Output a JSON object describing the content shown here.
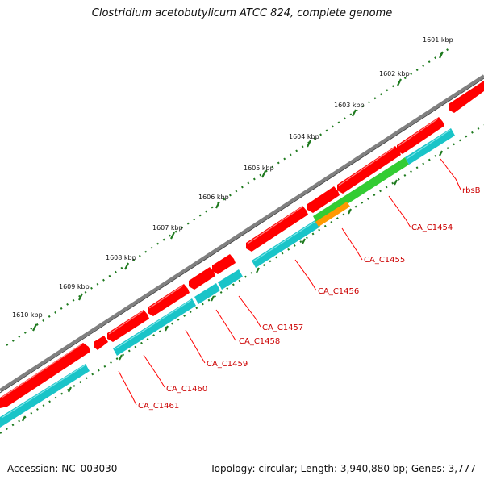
{
  "title": "Clostridium acetobutylicum ATCC 824, complete genome",
  "footer": {
    "accession": "Accession: NC_003030",
    "summary": "Topology: circular; Length: 3,940,880 bp; Genes: 3,777"
  },
  "scale_labels": [
    "1601 kbp",
    "1602 kbp",
    "1603 kbp",
    "1604 kbp",
    "1605 kbp",
    "1606 kbp",
    "1607 kbp",
    "1608 kbp",
    "1609 kbp",
    "1610 kbp"
  ],
  "gene_labels": [
    "rbsB",
    "CA_C1454",
    "CA_C1455",
    "CA_C1456",
    "CA_C1457",
    "CA_C1458",
    "CA_C1459",
    "CA_C1460",
    "CA_C1461"
  ],
  "colors": {
    "backbone": "#808080",
    "forward_gene": "#ff0000",
    "cds": "#19c4c8",
    "green_feature": "#33cc33",
    "orange_feature": "#ff9900",
    "tick": "#1e7a1e",
    "label": "#cc0000"
  }
}
